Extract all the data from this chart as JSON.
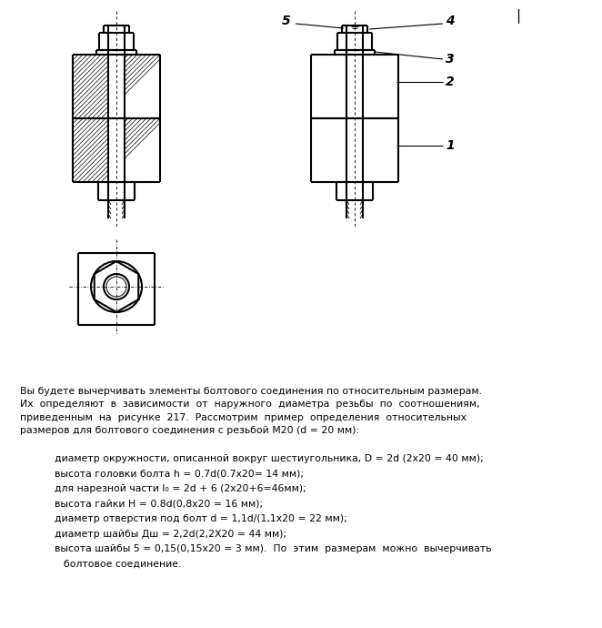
{
  "bg_color": "#ffffff",
  "page_width": 6.62,
  "page_height": 6.9,
  "line_color": "#000000",
  "thin_line": 0.6,
  "thick_line": 1.5,
  "text_paragraph": "Вы будете вычерчивать элементы болтового соединения по относительным размерам.\nИх  определяют  в  зависимости  от  наружного  диаметра  резьбы  по  соотношениям,\nприведенным  на  рисунке  217.  Рассмотрим  пример  определения  относительных\nразмеров для болтового соединения с резьбой М20 (d = 20 мм):",
  "bullet_items": [
    "диаметр окружности, описанной вокруг шестиугольника, D = 2d (2х20 = 40 мм);",
    "высота головки болта h = 0.7d(0.7х20= 14 мм);",
    "для нарезной части l₀ = 2d + 6 (2х20+6=46мм);",
    "высота гайки Н = 0.8d(0,8х20 = 16 мм);",
    "диаметр отверстия под болт d = 1,1d/(1,1х20 = 22 мм);",
    "диаметр шайбы Дш = 2,2d(2,2Х20 = 44 мм);",
    "высота шайбы 5 = 0,15(0,15х20 = 3 мм).  По  этим  размерам  можно  вычерчивать\nболтовое соединение."
  ]
}
